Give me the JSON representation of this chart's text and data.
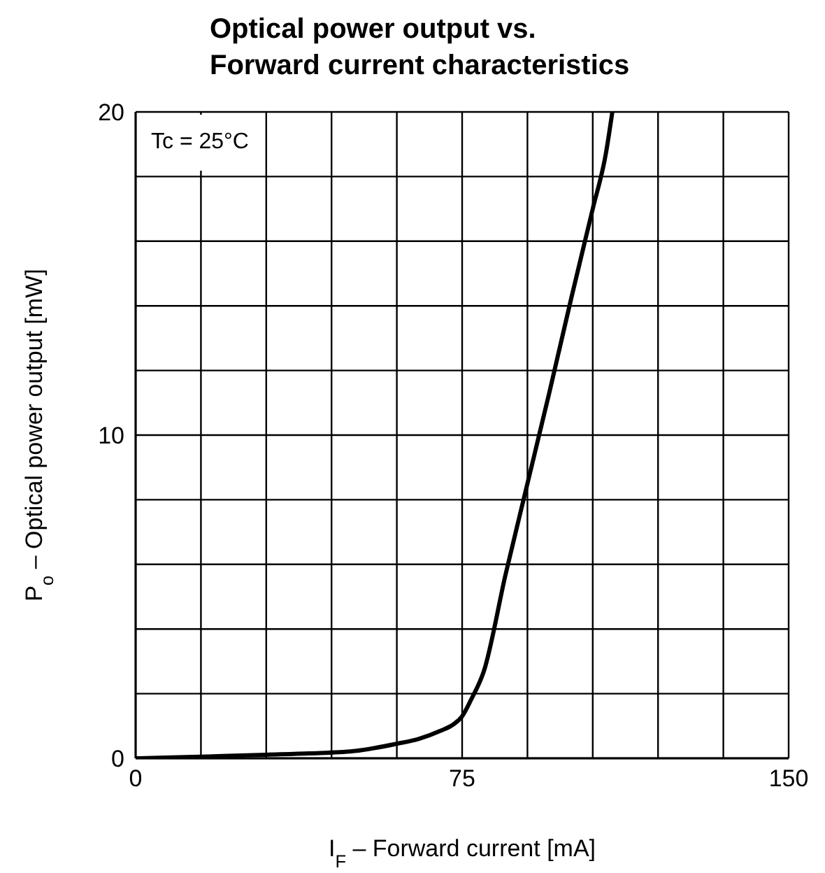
{
  "chart_data": {
    "type": "line",
    "title": "Optical power output vs.\nForward current characteristics",
    "xlabel": "I$_{F}$ – Forward current [mA]",
    "ylabel": "P$_{o}$ – Optical power output [mW]",
    "annotations": [
      "Tc = 25°C"
    ],
    "x": [
      0,
      10,
      20,
      30,
      40,
      50,
      60,
      65,
      70,
      73,
      75,
      77,
      80,
      85,
      90,
      95,
      100,
      105,
      108,
      109.5
    ],
    "series": [
      {
        "color": "#000000",
        "values": [
          0,
          0.03,
          0.07,
          0.11,
          0.15,
          0.22,
          0.45,
          0.6,
          0.85,
          1.05,
          1.3,
          1.8,
          2.7,
          5.7,
          8.5,
          11.3,
          14.2,
          17,
          18.7,
          20
        ]
      }
    ],
    "xlim": [
      0,
      150
    ],
    "ylim": [
      0,
      20
    ],
    "xticks": [
      0,
      {
        "value": 15,
        "label": null
      },
      {
        "value": 30,
        "label": null
      },
      {
        "value": 45,
        "label": null
      },
      {
        "value": 60,
        "label": null
      },
      75,
      {
        "value": 90,
        "label": null
      },
      {
        "value": 105,
        "label": null
      },
      {
        "value": 120,
        "label": null
      },
      {
        "value": 135,
        "label": null
      },
      150
    ],
    "yticks": [
      0,
      {
        "value": 2,
        "label": null
      },
      {
        "value": 4,
        "label": null
      },
      {
        "value": 6,
        "label": null
      },
      {
        "value": 8,
        "label": null
      },
      10,
      {
        "value": 12,
        "label": null
      },
      {
        "value": 14,
        "label": null
      },
      {
        "value": 16,
        "label": null
      },
      {
        "value": 18,
        "label": null
      },
      20
    ],
    "grid": true,
    "marker": "none",
    "line_style": "solid"
  }
}
